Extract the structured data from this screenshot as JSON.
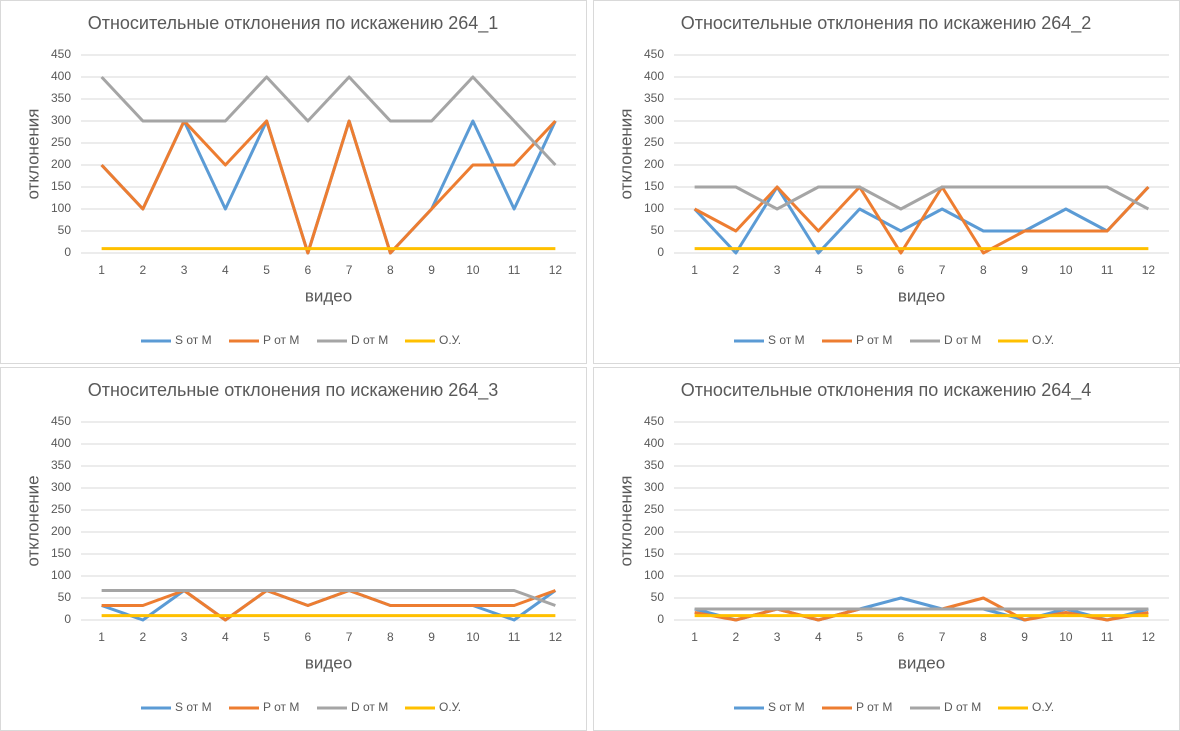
{
  "chart_data": [
    {
      "type": "line",
      "title": "Относительные отклонения по искажению 264_1",
      "x_label": "видео",
      "y_label": "отклонения",
      "categories": [
        "1",
        "2",
        "3",
        "4",
        "5",
        "6",
        "7",
        "8",
        "9",
        "10",
        "11",
        "12"
      ],
      "ylim": [
        0,
        450
      ],
      "yticks": [
        0,
        50,
        100,
        150,
        200,
        250,
        300,
        350,
        400,
        450
      ],
      "grid": true,
      "legend": "bottom",
      "series": [
        {
          "name": "S от M",
          "color": "#5b9bd5",
          "values": [
            200,
            100,
            300,
            100,
            300,
            0,
            300,
            0,
            100,
            300,
            100,
            300
          ]
        },
        {
          "name": "P от M",
          "color": "#ed7d31",
          "values": [
            200,
            100,
            300,
            200,
            300,
            0,
            300,
            0,
            100,
            200,
            200,
            300
          ]
        },
        {
          "name": "D от M",
          "color": "#a5a5a5",
          "values": [
            400,
            300,
            300,
            300,
            400,
            300,
            400,
            300,
            300,
            400,
            300,
            200
          ]
        },
        {
          "name": "O.У.",
          "color": "#ffc000",
          "values": [
            10,
            10,
            10,
            10,
            10,
            10,
            10,
            10,
            10,
            10,
            10,
            10
          ]
        }
      ]
    },
    {
      "type": "line",
      "title": "Относительные отклонения по искажению 264_2",
      "x_label": "видео",
      "y_label": "отклонения",
      "categories": [
        "1",
        "2",
        "3",
        "4",
        "5",
        "6",
        "7",
        "8",
        "9",
        "10",
        "11",
        "12"
      ],
      "ylim": [
        0,
        450
      ],
      "yticks": [
        0,
        50,
        100,
        150,
        200,
        250,
        300,
        350,
        400,
        450
      ],
      "grid": true,
      "legend": "bottom",
      "series": [
        {
          "name": "S от M",
          "color": "#5b9bd5",
          "values": [
            100,
            0,
            150,
            0,
            100,
            50,
            100,
            50,
            50,
            100,
            50,
            150
          ]
        },
        {
          "name": "P от M",
          "color": "#ed7d31",
          "values": [
            100,
            50,
            150,
            50,
            150,
            0,
            150,
            0,
            50,
            50,
            50,
            150
          ]
        },
        {
          "name": "D от M",
          "color": "#a5a5a5",
          "values": [
            150,
            150,
            100,
            150,
            150,
            100,
            150,
            150,
            150,
            150,
            150,
            100
          ]
        },
        {
          "name": "O.У.",
          "color": "#ffc000",
          "values": [
            10,
            10,
            10,
            10,
            10,
            10,
            10,
            10,
            10,
            10,
            10,
            10
          ]
        }
      ]
    },
    {
      "type": "line",
      "title": "Относительные отклонения по искажению 264_3",
      "x_label": "видео",
      "y_label": "отклонение",
      "categories": [
        "1",
        "2",
        "3",
        "4",
        "5",
        "6",
        "7",
        "8",
        "9",
        "10",
        "11",
        "12"
      ],
      "ylim": [
        0,
        450
      ],
      "yticks": [
        0,
        50,
        100,
        150,
        200,
        250,
        300,
        350,
        400,
        450
      ],
      "grid": true,
      "legend": "bottom",
      "series": [
        {
          "name": "S от M",
          "color": "#5b9bd5",
          "values": [
            33,
            0,
            67,
            0,
            67,
            33,
            67,
            33,
            33,
            33,
            0,
            67
          ]
        },
        {
          "name": "P от M",
          "color": "#ed7d31",
          "values": [
            33,
            33,
            67,
            0,
            67,
            33,
            67,
            33,
            33,
            33,
            33,
            67
          ]
        },
        {
          "name": "D от M",
          "color": "#a5a5a5",
          "values": [
            67,
            67,
            67,
            67,
            67,
            67,
            67,
            67,
            67,
            67,
            67,
            33
          ]
        },
        {
          "name": "O.У.",
          "color": "#ffc000",
          "values": [
            10,
            10,
            10,
            10,
            10,
            10,
            10,
            10,
            10,
            10,
            10,
            10
          ]
        }
      ]
    },
    {
      "type": "line",
      "title": "Относительные отклонения по искажению 264_4",
      "x_label": "видео",
      "y_label": "отклонения",
      "categories": [
        "1",
        "2",
        "3",
        "4",
        "5",
        "6",
        "7",
        "8",
        "9",
        "10",
        "11",
        "12"
      ],
      "ylim": [
        0,
        450
      ],
      "yticks": [
        0,
        50,
        100,
        150,
        200,
        250,
        300,
        350,
        400,
        450
      ],
      "grid": true,
      "legend": "bottom",
      "series": [
        {
          "name": "S от M",
          "color": "#5b9bd5",
          "values": [
            25,
            0,
            25,
            0,
            25,
            50,
            25,
            25,
            0,
            25,
            0,
            25
          ]
        },
        {
          "name": "P от M",
          "color": "#ed7d31",
          "values": [
            17,
            0,
            25,
            0,
            25,
            25,
            25,
            50,
            0,
            17,
            0,
            17
          ]
        },
        {
          "name": "D от M",
          "color": "#a5a5a5",
          "values": [
            25,
            25,
            25,
            25,
            25,
            25,
            25,
            25,
            25,
            25,
            25,
            25
          ]
        },
        {
          "name": "O.У.",
          "color": "#ffc000",
          "values": [
            10,
            10,
            10,
            10,
            10,
            10,
            10,
            10,
            10,
            10,
            10,
            10
          ]
        }
      ]
    }
  ]
}
